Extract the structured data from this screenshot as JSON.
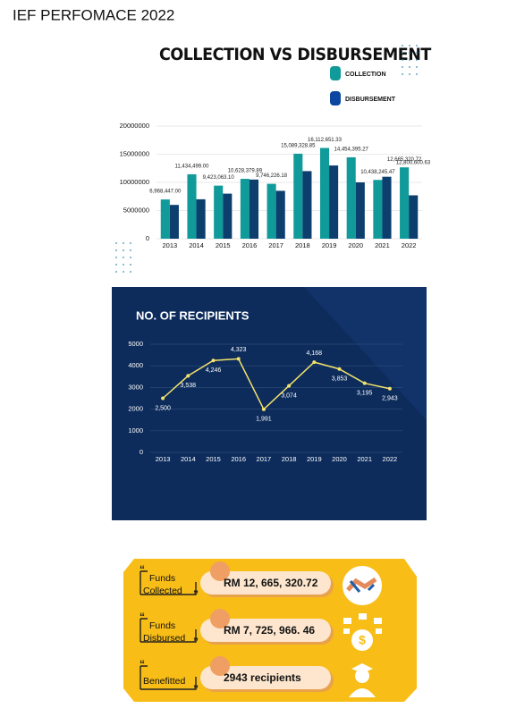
{
  "title": "IEF PERFOMACE 2022",
  "chart_data": [
    {
      "type": "bar",
      "title": "COLLECTION VS DISBURSEMENT",
      "categories": [
        "2013",
        "2014",
        "2015",
        "2016",
        "2017",
        "2018",
        "2019",
        "2020",
        "2021",
        "2022"
      ],
      "series": [
        {
          "name": "COLLECTION",
          "color": "#109a9a",
          "values": [
            6968447.0,
            11434499.0,
            9423063.1,
            10628379.89,
            9746226.18,
            15089328.85,
            16112651.33,
            14454395.27,
            10438245.47,
            12665320.72
          ],
          "value_labels": [
            "6,968,447.00",
            "11,434,499.00",
            "9,423,063.10",
            "10,628,379.89",
            "9,746,226.18",
            "15,089,328.85",
            "16,112,651.33",
            "14,454,395.27",
            "10,438,245.47",
            "12,665,320.72"
          ]
        },
        {
          "name": "DISBURSEMENT",
          "color": "#0c3e6e",
          "values": [
            6000000,
            7000000,
            8000000,
            10500000,
            8500000,
            12000000,
            13000000,
            10000000,
            11000000,
            7700000
          ]
        }
      ],
      "annotations": [
        "12,800,600.63"
      ],
      "ylim": [
        0,
        20000000
      ],
      "yticks": [
        0,
        5000000,
        10000000,
        15000000,
        20000000
      ],
      "grid": true
    },
    {
      "type": "line",
      "title": "NO. OF RECIPIENTS",
      "categories": [
        "2013",
        "2014",
        "2015",
        "2016",
        "2017",
        "2018",
        "2019",
        "2020",
        "2021",
        "2022"
      ],
      "values": [
        2500,
        3538,
        4246,
        4323,
        1991,
        3074,
        4168,
        3853,
        3195,
        2943
      ],
      "value_labels": [
        "2,500",
        "3,538",
        "4,246",
        "4,323",
        "1,991",
        "3,074",
        "4,168",
        "3,853",
        "3,195",
        "2,943"
      ],
      "color": "#f4e36b",
      "ylim": [
        0,
        5000
      ],
      "yticks": [
        0,
        1000,
        2000,
        3000,
        4000,
        5000
      ],
      "grid": true
    }
  ],
  "infographic": {
    "items": [
      {
        "label": "Funds Collected",
        "value": "RM 12, 665, 320.72"
      },
      {
        "label": "Funds Disbursed",
        "value": "RM 7, 725, 966. 46"
      },
      {
        "label": "Benefitted",
        "value": "2943 recipients"
      }
    ]
  }
}
